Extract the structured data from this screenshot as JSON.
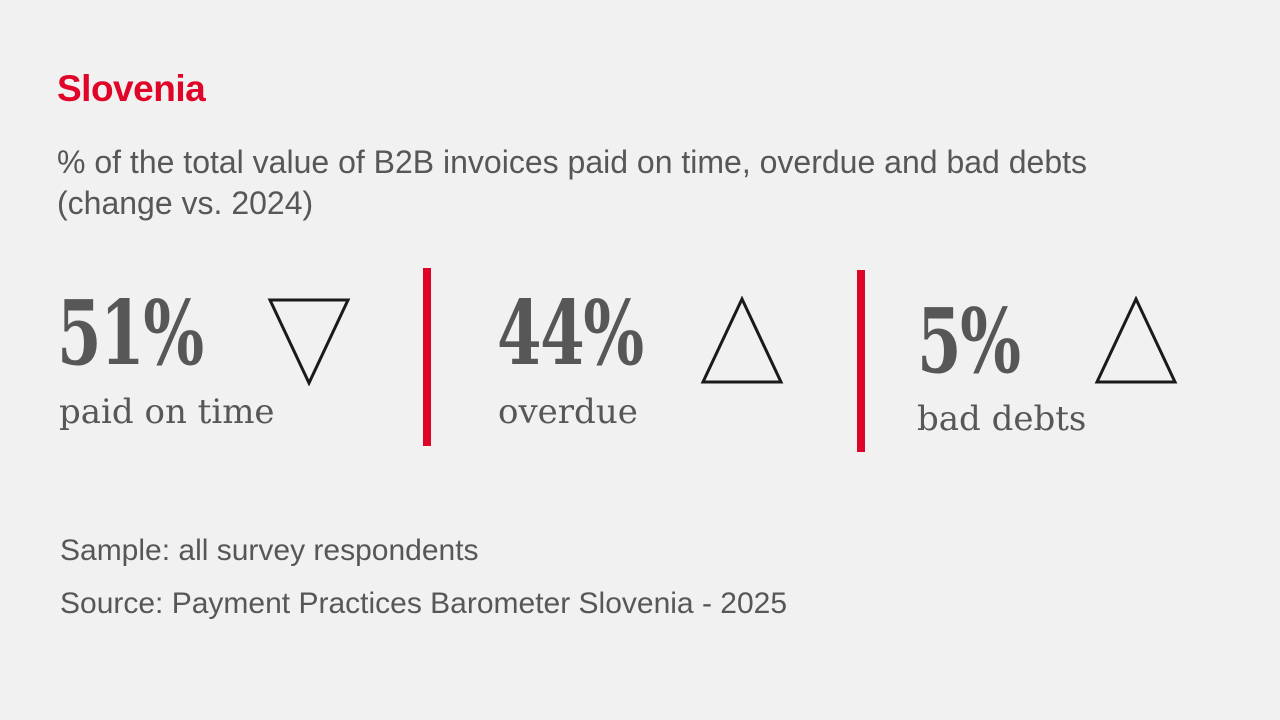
{
  "theme": {
    "background": "#F1F1F1",
    "accent_red": "#E00428",
    "text_gray": "#575757",
    "triangle_outline": "#1A1A1A"
  },
  "header": {
    "title": "Slovenia",
    "subtitle_line1": "% of the total value of B2B invoices paid on time, overdue and bad debts",
    "subtitle_line2": "(change vs. 2024)"
  },
  "stats": [
    {
      "value": "51%",
      "label": "paid on time",
      "direction": "down"
    },
    {
      "value": "44%",
      "label": "overdue",
      "direction": "up"
    },
    {
      "value": "5%",
      "label": "bad debts",
      "direction": "up"
    }
  ],
  "footer": {
    "sample": "Sample: all survey respondents",
    "source": "Source: Payment Practices Barometer Slovenia - 2025"
  },
  "chart_data": {
    "type": "table",
    "title": "Slovenia",
    "subtitle": "% of the total value of B2B invoices paid on time, overdue and bad debts (change vs. 2024)",
    "categories": [
      "paid on time",
      "overdue",
      "bad debts"
    ],
    "values": [
      51,
      44,
      5
    ],
    "unit": "%",
    "change_vs_2024": [
      "decrease",
      "increase",
      "increase"
    ],
    "sample": "all survey respondents",
    "source": "Payment Practices Barometer Slovenia - 2025"
  }
}
